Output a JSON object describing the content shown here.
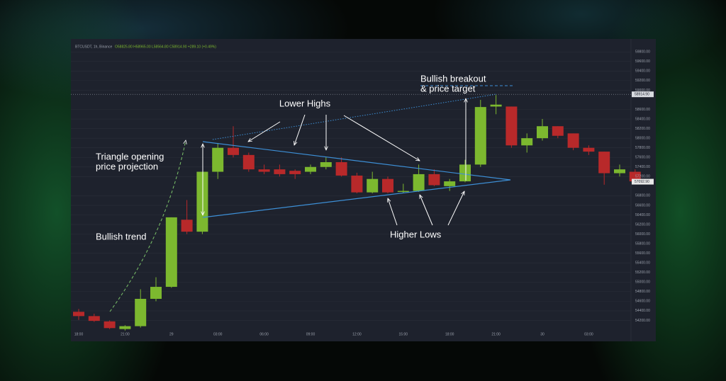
{
  "chart_data": {
    "type": "candlestick",
    "symbol": "BTCUSDT, 1h, Binance",
    "ohlc_readout": "O58825.80 H58965.00 L58564.80 C58914.90 +289.10 (+0.49%)",
    "categories": [
      "18:00",
      null,
      null,
      "21:00",
      null,
      null,
      "29",
      null,
      null,
      "03:00",
      null,
      null,
      "06:00",
      null,
      null,
      "09:00",
      null,
      null,
      "12:00",
      null,
      null,
      "15:00",
      null,
      null,
      "18:00",
      null,
      null,
      "21:00",
      null,
      null,
      "30",
      null,
      null,
      "03:00",
      null,
      null,
      null
    ],
    "open": [
      54380,
      54290,
      54180,
      54020,
      54080,
      54650,
      54900,
      56300,
      56050,
      57300,
      57800,
      57650,
      57350,
      57350,
      57320,
      57300,
      57400,
      57500,
      57220,
      56870,
      57150,
      56880,
      56900,
      57250,
      57000,
      57100,
      57450,
      58660,
      58660,
      57850,
      58000,
      58250,
      58100,
      57800,
      57720,
      57270,
      57300
    ],
    "high": [
      54440,
      54340,
      54200,
      54100,
      54850,
      55100,
      56350,
      56710,
      57300,
      57900,
      58250,
      57700,
      57450,
      57450,
      57350,
      57450,
      57600,
      57600,
      57280,
      57300,
      57200,
      57050,
      57450,
      57350,
      57150,
      57550,
      58800,
      58900,
      58660,
      58100,
      58400,
      58250,
      58100,
      57850,
      57720,
      57450,
      57350
    ],
    "low": [
      54210,
      54170,
      54020,
      53990,
      54050,
      54600,
      54880,
      56000,
      56000,
      57150,
      57600,
      57300,
      57250,
      57200,
      57150,
      57250,
      57350,
      57200,
      56850,
      56850,
      56850,
      56850,
      56880,
      57000,
      56900,
      57080,
      57400,
      58500,
      57800,
      57700,
      57950,
      58000,
      57750,
      57650,
      57030,
      57200,
      57050
    ],
    "close": [
      54290,
      54190,
      54040,
      54080,
      54650,
      54900,
      56350,
      56050,
      57300,
      57800,
      57650,
      57350,
      57300,
      57250,
      57250,
      57400,
      57500,
      57220,
      56870,
      57150,
      56870,
      56900,
      57250,
      57020,
      57100,
      57450,
      58650,
      58700,
      57850,
      58000,
      58250,
      58050,
      57800,
      57720,
      57270,
      57350,
      57100
    ],
    "up_color": "#7cb82f",
    "down_color": "#b8292a",
    "ylim": [
      54000,
      60040
    ],
    "yticks": [
      {
        "value": 59800,
        "label": "59800.00"
      },
      {
        "value": 59600,
        "label": "59600.00"
      },
      {
        "value": 59400,
        "label": "59400.00"
      },
      {
        "value": 59200,
        "label": "59200.00"
      },
      {
        "value": 59000,
        "label": "59000.00"
      },
      {
        "value": 58600,
        "label": "58600.00"
      },
      {
        "value": 58400,
        "label": "58400.00"
      },
      {
        "value": 58200,
        "label": "58200.00"
      },
      {
        "value": 58000,
        "label": "58000.00"
      },
      {
        "value": 57800,
        "label": "57800.00"
      },
      {
        "value": 57600,
        "label": "57600.00"
      },
      {
        "value": 57400,
        "label": "57400.00"
      },
      {
        "value": 57200,
        "label": "57200.00"
      },
      {
        "value": 56800,
        "label": "56800.00"
      },
      {
        "value": 56600,
        "label": "56600.00"
      },
      {
        "value": 56400,
        "label": "56400.00"
      },
      {
        "value": 56200,
        "label": "56200.00"
      },
      {
        "value": 56000,
        "label": "56000.00"
      },
      {
        "value": 55800,
        "label": "55800.00"
      },
      {
        "value": 55600,
        "label": "55600.00"
      },
      {
        "value": 55400,
        "label": "55400.00"
      },
      {
        "value": 55200,
        "label": "55200.00"
      },
      {
        "value": 55000,
        "label": "55000.00"
      },
      {
        "value": 54800,
        "label": "54800.00"
      },
      {
        "value": 54600,
        "label": "54600.00"
      },
      {
        "value": 54400,
        "label": "54400.00"
      },
      {
        "value": 54200,
        "label": "54200.00"
      }
    ],
    "grid": true,
    "price_tags": [
      {
        "value": 58914.9,
        "label": "58914.90"
      },
      {
        "value": 57092.9,
        "label": "57092.90"
      }
    ],
    "annotations": [
      {
        "lines": [
          "Bullish breakout",
          "& price target"
        ]
      },
      {
        "lines": [
          "Lower Highs"
        ]
      },
      {
        "lines": [
          "Triangle opening",
          "price projection"
        ]
      },
      {
        "lines": [
          "Bullish trend"
        ]
      },
      {
        "lines": [
          "Higher Lows"
        ]
      }
    ]
  }
}
